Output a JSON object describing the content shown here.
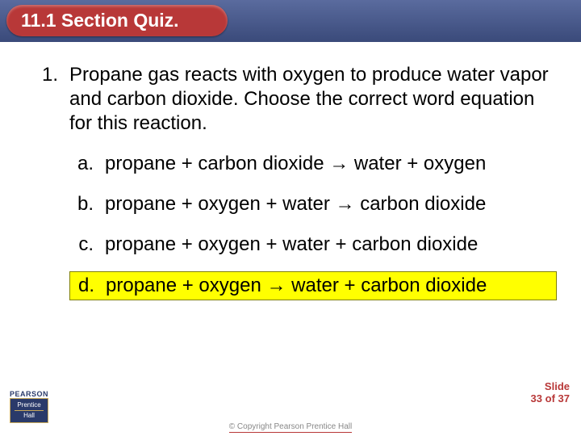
{
  "header": {
    "title": "11.1 Section Quiz."
  },
  "question": {
    "number": "1.",
    "text": "Propane gas reacts with oxygen to produce water vapor and carbon dioxide. Choose the correct word equation for this reaction."
  },
  "options": [
    {
      "letter": "a.",
      "text": "propane + carbon dioxide → water + oxygen",
      "highlight": false
    },
    {
      "letter": "b.",
      "text": "propane + oxygen + water → carbon dioxide",
      "highlight": false
    },
    {
      "letter": "c.",
      "text": "propane + oxygen + water + carbon dioxide",
      "highlight": false
    },
    {
      "letter": "d.",
      "text": "propane + oxygen → water + carbon dioxide",
      "highlight": true
    }
  ],
  "footer": {
    "slide_label": "Slide",
    "slide_num": "33",
    "slide_of": "of",
    "slide_total": "37",
    "copyright": "© Copyright Pearson Prentice Hall",
    "logo_top": "PEARSON",
    "logo_ph1": "Prentice",
    "logo_ph2": "Hall"
  },
  "colors": {
    "accent": "#b83838",
    "header_grad_top": "#5a6b9e",
    "header_grad_bottom": "#3a4a7a",
    "highlight_bg": "#ffff00",
    "highlight_border": "#808000"
  }
}
